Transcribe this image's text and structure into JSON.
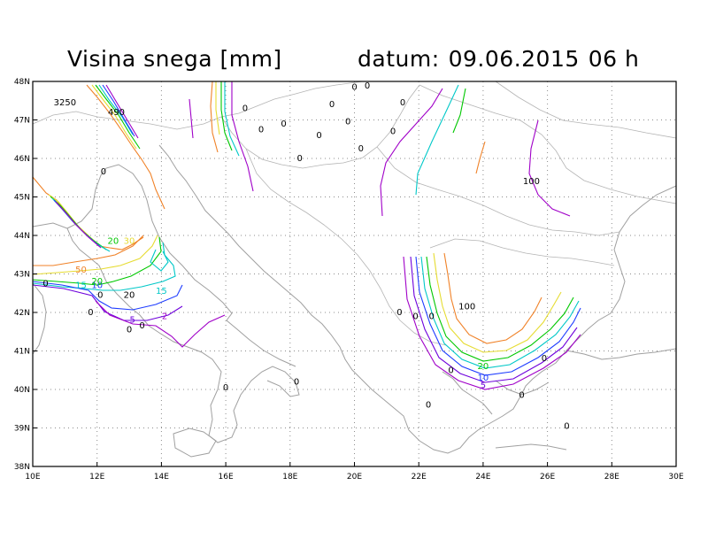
{
  "header": {
    "title": "Visina snega [mm]",
    "date_label": "datum:",
    "date": "09.06.2015",
    "hour": "06 h"
  },
  "map": {
    "lon_range": [
      10,
      30
    ],
    "lat_range": [
      38,
      48
    ],
    "x_ticks": [
      "10E",
      "12E",
      "14E",
      "16E",
      "18E",
      "20E",
      "22E",
      "24E",
      "26E",
      "28E",
      "30E"
    ],
    "y_ticks": [
      "38N",
      "39N",
      "40N",
      "41N",
      "42N",
      "43N",
      "44N",
      "45N",
      "46N",
      "47N",
      "48N"
    ],
    "grid": "dotted",
    "colors": {
      "frame": "#000000",
      "coast": "#a0a0a0",
      "grid": "#8c8c8c"
    },
    "contour_colors": {
      "2": "#a000c8",
      "5": "#6e00dc",
      "10": "#1e3cff",
      "15": "#00c8c8",
      "20": "#00c800",
      "30": "#e6dc32",
      "50": "#f08228",
      "100": "#a000c8"
    },
    "labels": [
      {
        "text": "3250",
        "lon": 11.0,
        "lat": 47.45,
        "color": "#000000"
      },
      {
        "text": "490",
        "lon": 12.6,
        "lat": 47.2,
        "color": "#000000"
      },
      {
        "text": "0",
        "lon": 12.2,
        "lat": 45.65,
        "color": "#000000"
      },
      {
        "text": "0",
        "lon": 16.6,
        "lat": 47.3,
        "color": "#000000"
      },
      {
        "text": "0",
        "lon": 17.1,
        "lat": 46.75,
        "color": "#000000"
      },
      {
        "text": "0",
        "lon": 17.8,
        "lat": 46.9,
        "color": "#000000"
      },
      {
        "text": "0",
        "lon": 18.3,
        "lat": 46.0,
        "color": "#000000"
      },
      {
        "text": "0",
        "lon": 18.9,
        "lat": 46.6,
        "color": "#000000"
      },
      {
        "text": "0",
        "lon": 19.3,
        "lat": 47.4,
        "color": "#000000"
      },
      {
        "text": "0",
        "lon": 19.8,
        "lat": 46.95,
        "color": "#000000"
      },
      {
        "text": "0",
        "lon": 20.2,
        "lat": 46.25,
        "color": "#000000"
      },
      {
        "text": "0",
        "lon": 20.0,
        "lat": 47.85,
        "color": "#000000"
      },
      {
        "text": "0",
        "lon": 20.4,
        "lat": 47.88,
        "color": "#000000"
      },
      {
        "text": "0",
        "lon": 21.2,
        "lat": 46.7,
        "color": "#000000"
      },
      {
        "text": "0",
        "lon": 21.5,
        "lat": 47.45,
        "color": "#000000"
      },
      {
        "text": "100",
        "lon": 25.5,
        "lat": 45.4,
        "color": "#000000"
      },
      {
        "text": "20",
        "lon": 12.5,
        "lat": 43.85,
        "color": "#00c800"
      },
      {
        "text": "30",
        "lon": 13.0,
        "lat": 43.85,
        "color": "#e6dc32"
      },
      {
        "text": "50",
        "lon": 11.5,
        "lat": 43.1,
        "color": "#f08228"
      },
      {
        "text": "0",
        "lon": 10.4,
        "lat": 42.75,
        "color": "#000000"
      },
      {
        "text": "15",
        "lon": 11.5,
        "lat": 42.7,
        "color": "#00c8c8"
      },
      {
        "text": "10",
        "lon": 12.0,
        "lat": 42.7,
        "color": "#1e3cff"
      },
      {
        "text": "20",
        "lon": 12.0,
        "lat": 42.8,
        "color": "#00c800"
      },
      {
        "text": "20",
        "lon": 13.0,
        "lat": 42.45,
        "color": "#000000"
      },
      {
        "text": "15",
        "lon": 14.0,
        "lat": 42.55,
        "color": "#00c8c8"
      },
      {
        "text": "0",
        "lon": 12.1,
        "lat": 42.45,
        "color": "#000000"
      },
      {
        "text": "0",
        "lon": 11.8,
        "lat": 42.0,
        "color": "#000000"
      },
      {
        "text": "5",
        "lon": 13.1,
        "lat": 41.8,
        "color": "#6e00dc"
      },
      {
        "text": "2",
        "lon": 14.1,
        "lat": 41.9,
        "color": "#a000c8"
      },
      {
        "text": "0",
        "lon": 13.0,
        "lat": 41.55,
        "color": "#000000"
      },
      {
        "text": "0",
        "lon": 13.4,
        "lat": 41.65,
        "color": "#000000"
      },
      {
        "text": "0",
        "lon": 16.0,
        "lat": 40.05,
        "color": "#000000"
      },
      {
        "text": "0",
        "lon": 18.2,
        "lat": 40.2,
        "color": "#000000"
      },
      {
        "text": "100",
        "lon": 23.5,
        "lat": 42.15,
        "color": "#000000"
      },
      {
        "text": "0",
        "lon": 21.4,
        "lat": 42.0,
        "color": "#000000"
      },
      {
        "text": "0",
        "lon": 21.9,
        "lat": 41.9,
        "color": "#000000"
      },
      {
        "text": "0",
        "lon": 22.4,
        "lat": 41.9,
        "color": "#000000"
      },
      {
        "text": "0",
        "lon": 23.0,
        "lat": 40.5,
        "color": "#000000"
      },
      {
        "text": "20",
        "lon": 24.0,
        "lat": 40.6,
        "color": "#00c800"
      },
      {
        "text": "10",
        "lon": 24.0,
        "lat": 40.3,
        "color": "#1e3cff"
      },
      {
        "text": "5",
        "lon": 24.0,
        "lat": 40.1,
        "color": "#6e00dc"
      },
      {
        "text": "0",
        "lon": 25.9,
        "lat": 40.8,
        "color": "#000000"
      },
      {
        "text": "0",
        "lon": 25.2,
        "lat": 39.85,
        "color": "#000000"
      },
      {
        "text": "0",
        "lon": 22.3,
        "lat": 39.6,
        "color": "#000000"
      },
      {
        "text": "0",
        "lon": 26.6,
        "lat": 39.05,
        "color": "#000000"
      }
    ]
  }
}
